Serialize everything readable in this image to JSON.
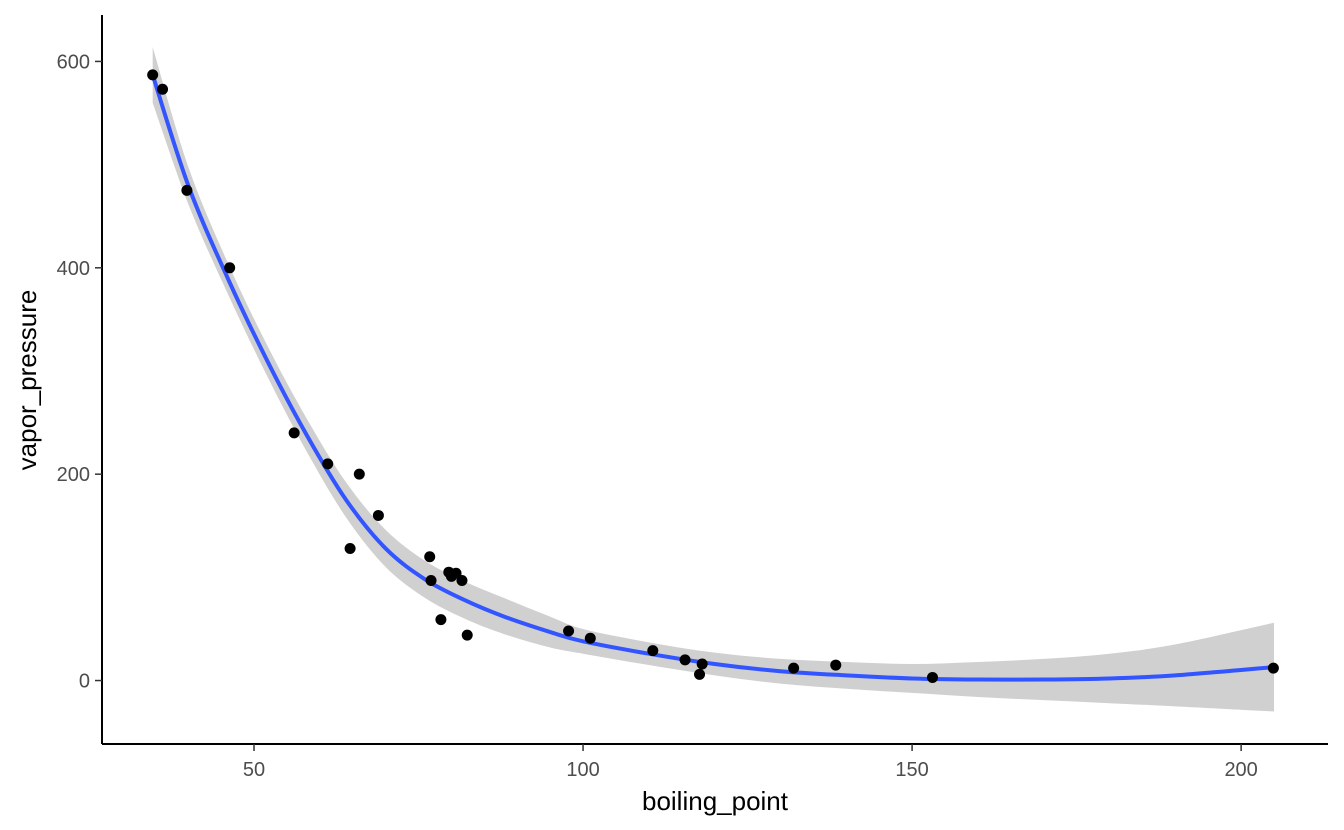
{
  "chart_data": {
    "type": "scatter",
    "xlabel": "boiling_point",
    "ylabel": "vapor_pressure",
    "xlim": [
      26.9,
      213.2
    ],
    "ylim": [
      -61.5,
      645
    ],
    "x_ticks": [
      50,
      100,
      150,
      200
    ],
    "y_ticks": [
      0,
      200,
      400,
      600
    ],
    "grid": false,
    "colors": {
      "points": "#000000",
      "smooth_line": "#3355ff",
      "confidence_band": "#d0d0d0",
      "axis": "#000000"
    },
    "points": [
      {
        "x": 34.6,
        "y": 587
      },
      {
        "x": 36.1,
        "y": 573
      },
      {
        "x": 39.8,
        "y": 475
      },
      {
        "x": 46.3,
        "y": 400
      },
      {
        "x": 56.1,
        "y": 240
      },
      {
        "x": 61.2,
        "y": 210
      },
      {
        "x": 64.6,
        "y": 128
      },
      {
        "x": 66.0,
        "y": 200
      },
      {
        "x": 68.9,
        "y": 160
      },
      {
        "x": 76.7,
        "y": 120
      },
      {
        "x": 76.9,
        "y": 97
      },
      {
        "x": 78.4,
        "y": 59
      },
      {
        "x": 79.6,
        "y": 105
      },
      {
        "x": 80.0,
        "y": 101
      },
      {
        "x": 80.7,
        "y": 104
      },
      {
        "x": 81.6,
        "y": 97
      },
      {
        "x": 82.4,
        "y": 44
      },
      {
        "x": 97.8,
        "y": 48
      },
      {
        "x": 101.1,
        "y": 41
      },
      {
        "x": 110.6,
        "y": 29
      },
      {
        "x": 115.5,
        "y": 20
      },
      {
        "x": 117.7,
        "y": 6
      },
      {
        "x": 118.1,
        "y": 16
      },
      {
        "x": 132.0,
        "y": 12
      },
      {
        "x": 138.4,
        "y": 15
      },
      {
        "x": 153.1,
        "y": 3
      },
      {
        "x": 204.9,
        "y": 12
      }
    ],
    "smooth": {
      "method": "loess",
      "fit": [
        {
          "x": 34.6,
          "y": 587,
          "lo": 560,
          "hi": 614
        },
        {
          "x": 40,
          "y": 480,
          "lo": 462,
          "hi": 498
        },
        {
          "x": 46,
          "y": 390,
          "lo": 375,
          "hi": 405
        },
        {
          "x": 52,
          "y": 310,
          "lo": 295,
          "hi": 325
        },
        {
          "x": 58,
          "y": 238,
          "lo": 222,
          "hi": 254
        },
        {
          "x": 64,
          "y": 175,
          "lo": 158,
          "hi": 192
        },
        {
          "x": 70,
          "y": 128,
          "lo": 110,
          "hi": 146
        },
        {
          "x": 76,
          "y": 98,
          "lo": 80,
          "hi": 116
        },
        {
          "x": 82,
          "y": 78,
          "lo": 60,
          "hi": 96
        },
        {
          "x": 88,
          "y": 62,
          "lo": 45,
          "hi": 80
        },
        {
          "x": 95,
          "y": 47,
          "lo": 32,
          "hi": 62
        },
        {
          "x": 100,
          "y": 38,
          "lo": 26,
          "hi": 50
        },
        {
          "x": 110,
          "y": 26,
          "lo": 15,
          "hi": 37
        },
        {
          "x": 120,
          "y": 16,
          "lo": 5,
          "hi": 27
        },
        {
          "x": 130,
          "y": 9,
          "lo": -3,
          "hi": 21
        },
        {
          "x": 140,
          "y": 5,
          "lo": -8,
          "hi": 18
        },
        {
          "x": 150,
          "y": 2,
          "lo": -12,
          "hi": 16
        },
        {
          "x": 160,
          "y": 1,
          "lo": -16,
          "hi": 18
        },
        {
          "x": 170,
          "y": 1,
          "lo": -19,
          "hi": 21
        },
        {
          "x": 180,
          "y": 2,
          "lo": -22,
          "hi": 26
        },
        {
          "x": 190,
          "y": 5,
          "lo": -25,
          "hi": 35
        },
        {
          "x": 205,
          "y": 13,
          "lo": -30,
          "hi": 56
        }
      ]
    }
  }
}
